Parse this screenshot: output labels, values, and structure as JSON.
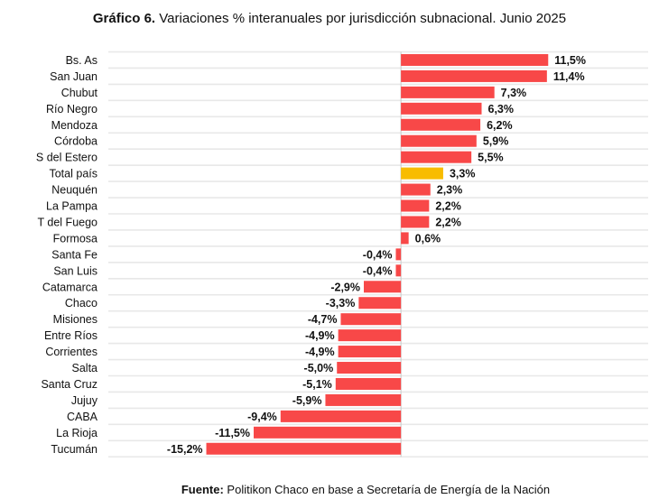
{
  "title": {
    "prefix": "Gráfico 6.",
    "text": "Variaciones % interanuales por jurisdicción subnacional. Junio 2025"
  },
  "source": {
    "prefix": "Fuente:",
    "text": "Politikon Chaco en base a Secretaría de Energía de la Nación"
  },
  "colors": {
    "bar": "#f84848",
    "highlight": "#f8bc00",
    "row_band": "#e8e8e8",
    "axis": "#c8c8c8"
  },
  "chart_data": {
    "type": "bar",
    "orientation": "horizontal",
    "title": "Gráfico 6. Variaciones % interanuales por jurisdicción subnacional. Junio 2025",
    "unit": "%",
    "highlight_category": "Total país",
    "xlim": [
      -17.0,
      15.5
    ],
    "grid": false,
    "legend": "none",
    "categories": [
      "Bs. As",
      "San Juan",
      "Chubut",
      "Río Negro",
      "Mendoza",
      "Córdoba",
      "S del Estero",
      "Total país",
      "Neuquén",
      "La Pampa",
      "T del Fuego",
      "Formosa",
      "Santa Fe",
      "San Luis",
      "Catamarca",
      "Chaco",
      "Misiones",
      "Entre Ríos",
      "Corrientes",
      "Salta",
      "Santa Cruz",
      "Jujuy",
      "CABA",
      "La Rioja",
      "Tucumán"
    ],
    "values": [
      11.5,
      11.4,
      7.3,
      6.3,
      6.2,
      5.9,
      5.5,
      3.3,
      2.3,
      2.2,
      2.2,
      0.6,
      -0.4,
      -0.4,
      -2.9,
      -3.3,
      -4.7,
      -4.9,
      -4.9,
      -5.0,
      -5.1,
      -5.9,
      -9.4,
      -11.5,
      -15.2
    ],
    "labels": [
      "11,5%",
      "11,4%",
      "7,3%",
      "6,3%",
      "6,2%",
      "5,9%",
      "5,5%",
      "3,3%",
      "2,3%",
      "2,2%",
      "2,2%",
      "0,6%",
      "-0,4%",
      "-0,4%",
      "-2,9%",
      "-3,3%",
      "-4,7%",
      "-4,9%",
      "-4,9%",
      "-5,0%",
      "-5,1%",
      "-5,9%",
      "-9,4%",
      "-11,5%",
      "-15,2%"
    ]
  }
}
